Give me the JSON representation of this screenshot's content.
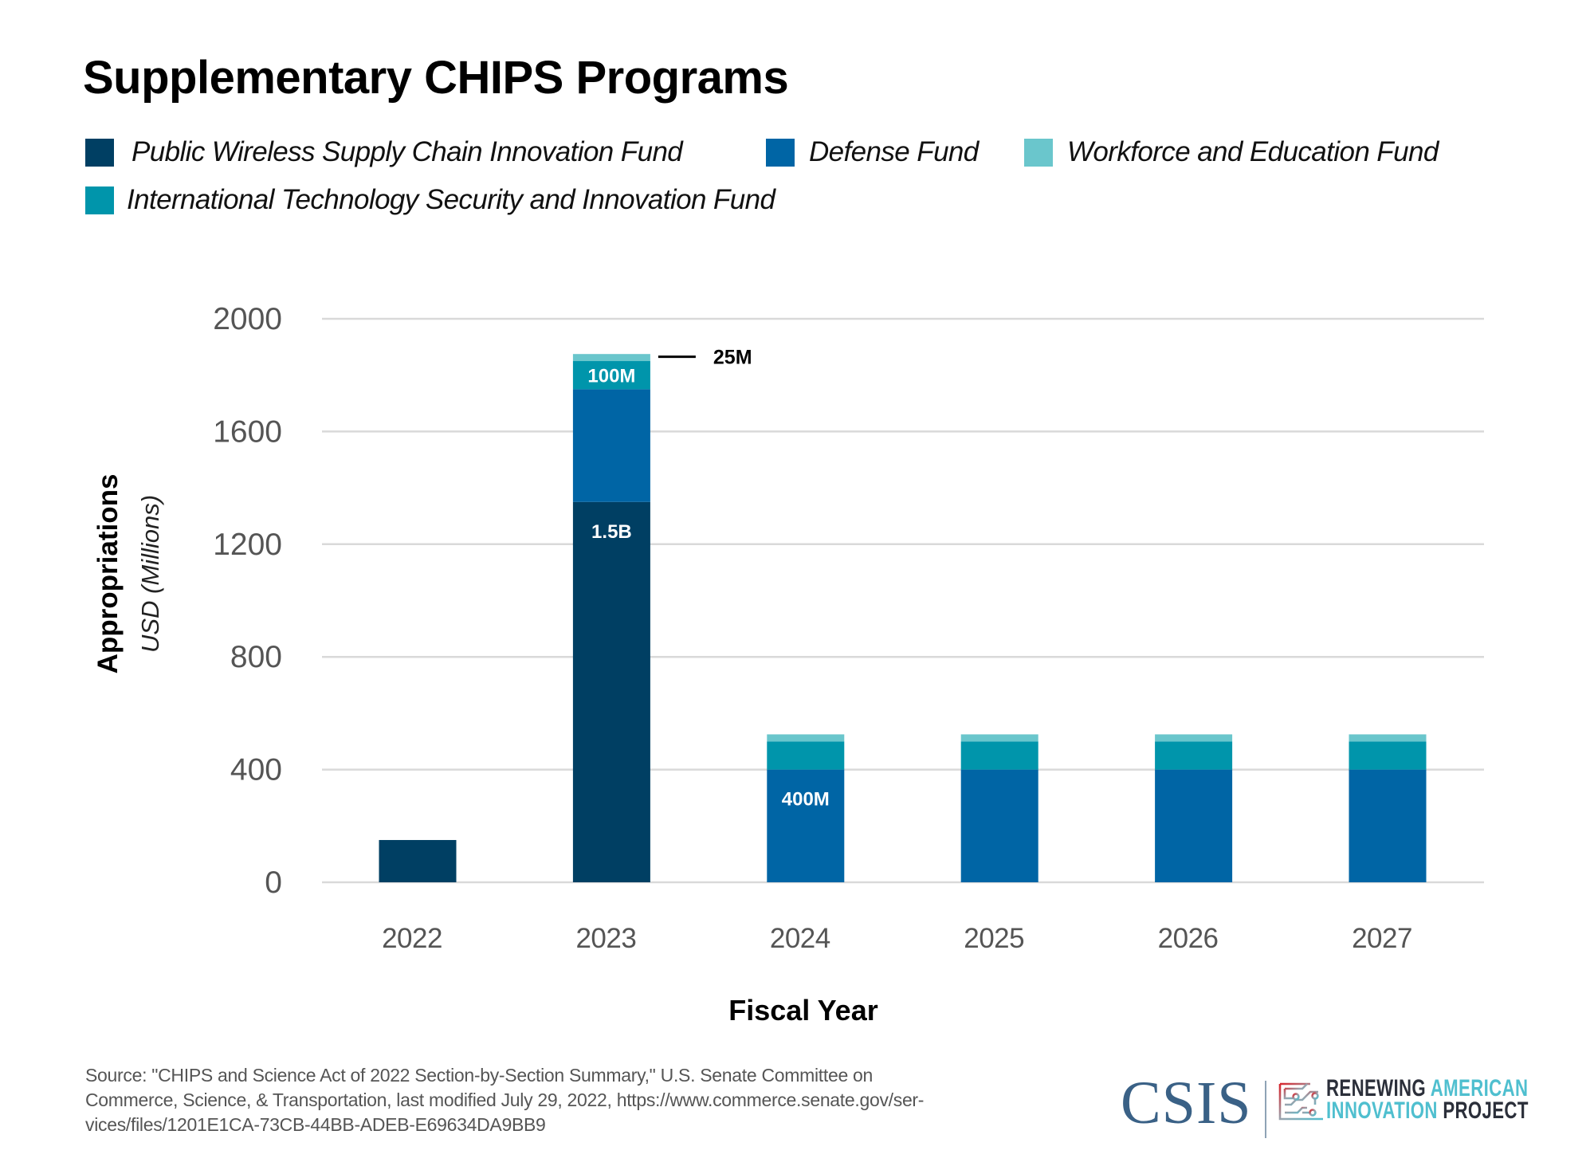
{
  "title": "Supplementary CHIPS Programs",
  "legend": [
    {
      "label": "Public Wireless Supply Chain Innovation Fund",
      "color": "#003f63"
    },
    {
      "label": "Defense Fund",
      "color": "#0065a5"
    },
    {
      "label": "Workforce and Education Fund",
      "color": "#6ac6cc"
    },
    {
      "label": "International Technology Security and Innovation Fund",
      "color": "#0095ab"
    }
  ],
  "chart_data": {
    "type": "bar",
    "stacked": true,
    "title": "Supplementary CHIPS Programs",
    "xlabel": "Fiscal Year",
    "ylabel": "Appropriations",
    "ylabel_sub": "USD (Millions)",
    "categories": [
      "2022",
      "2023",
      "2024",
      "2025",
      "2026",
      "2027"
    ],
    "ylim": [
      0,
      2000
    ],
    "yticks": [
      0,
      400,
      800,
      1200,
      1600,
      2000
    ],
    "grid": true,
    "legend_position": "top-left",
    "series": [
      {
        "name": "Public Wireless Supply Chain Innovation Fund",
        "color": "#003f63",
        "values": [
          150,
          1350,
          0,
          0,
          0,
          0
        ]
      },
      {
        "name": "Defense Fund",
        "color": "#0065a5",
        "values": [
          0,
          400,
          400,
          400,
          400,
          400
        ]
      },
      {
        "name": "International Technology Security and Innovation Fund",
        "color": "#0095ab",
        "values": [
          0,
          100,
          100,
          100,
          100,
          100
        ]
      },
      {
        "name": "Workforce and Education Fund",
        "color": "#6ac6cc",
        "values": [
          0,
          25,
          25,
          25,
          25,
          25
        ]
      }
    ],
    "annotations": [
      {
        "text": "1.5B",
        "category": 1,
        "series": 0,
        "placement": "inside-top"
      },
      {
        "text": "100M",
        "category": 1,
        "series": 2,
        "placement": "inside-center"
      },
      {
        "text": "400M",
        "category": 2,
        "series": 1,
        "placement": "inside-top"
      },
      {
        "text": "25M",
        "category": 1,
        "series": 3,
        "placement": "callout-right"
      }
    ]
  },
  "source": {
    "lines": [
      "Source: \"CHIPS and Science Act of 2022 Section-by-Section Summary,\" U.S. Senate Committee on",
      "Commerce, Science, & Transportation, last modified July 29, 2022, https://www.commerce.senate.gov/ser-",
      "vices/files/1201E1CA-73CB-44BB-ADEB-E69634DA9BB9"
    ]
  },
  "logos": {
    "csis": "CSIS",
    "rai_line1_a": "RENEWING",
    "rai_line1_b": "AMERICAN",
    "rai_line2_a": "INNOVATION",
    "rai_line2_b": "PROJECT"
  }
}
